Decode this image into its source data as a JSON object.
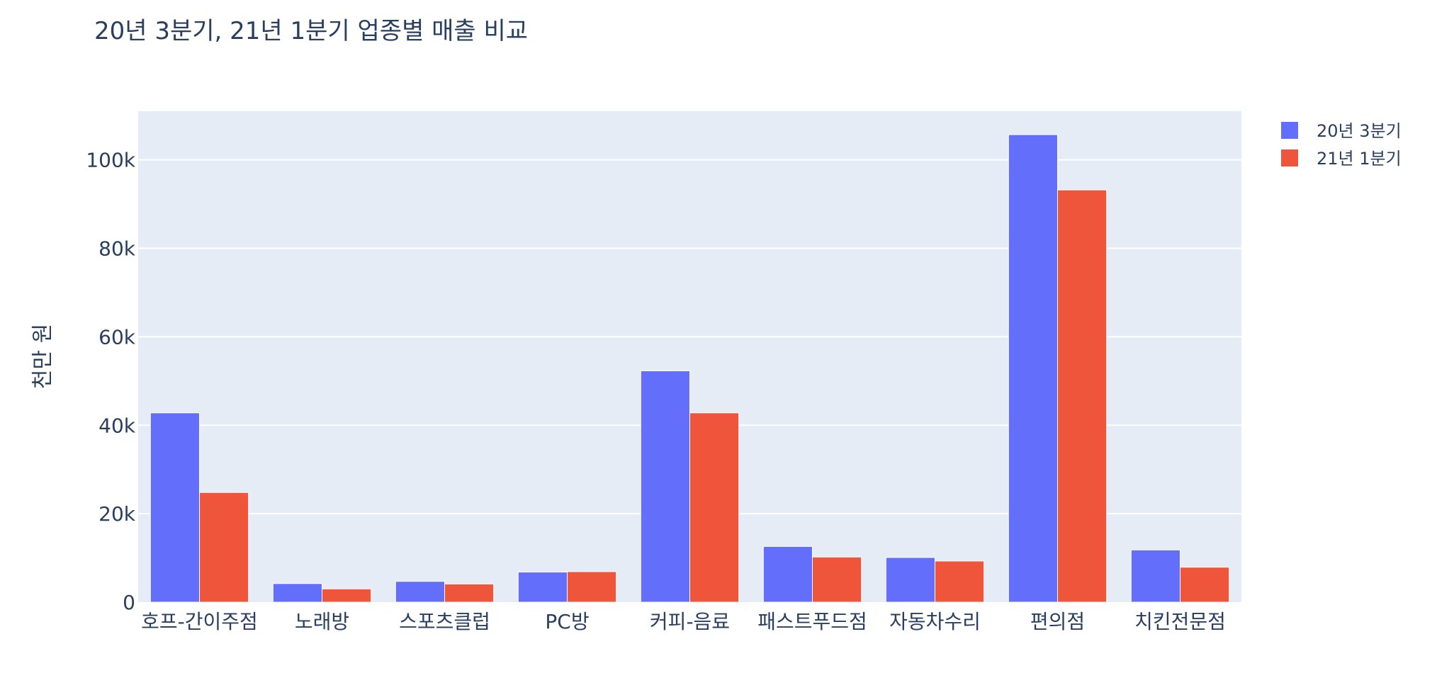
{
  "chart_data": {
    "type": "bar",
    "title": "20년 3분기, 21년 1분기 업종별 매출 비교",
    "xlabel": "",
    "ylabel": "천만 원",
    "categories": [
      "호프-간이주점",
      "노래방",
      "스포츠클럽",
      "PC방",
      "커피-음료",
      "패스트푸드점",
      "자동차수리",
      "편의점",
      "치킨전문점"
    ],
    "series": [
      {
        "name": "20년 3분기",
        "color": "#636efa",
        "values": [
          42800,
          4200,
          4700,
          6800,
          52300,
          12600,
          10100,
          105700,
          11800
        ]
      },
      {
        "name": "21년 1분기",
        "color": "#ef553b",
        "values": [
          24800,
          3000,
          4100,
          6900,
          42800,
          10200,
          9300,
          93200,
          7900
        ]
      }
    ],
    "ylim": [
      0,
      111000
    ],
    "yticks": [
      0,
      20000,
      40000,
      60000,
      80000,
      100000
    ],
    "ytick_labels": [
      "0",
      "20k",
      "40k",
      "60k",
      "80k",
      "100k"
    ],
    "grid": true,
    "legend": "top-right"
  }
}
